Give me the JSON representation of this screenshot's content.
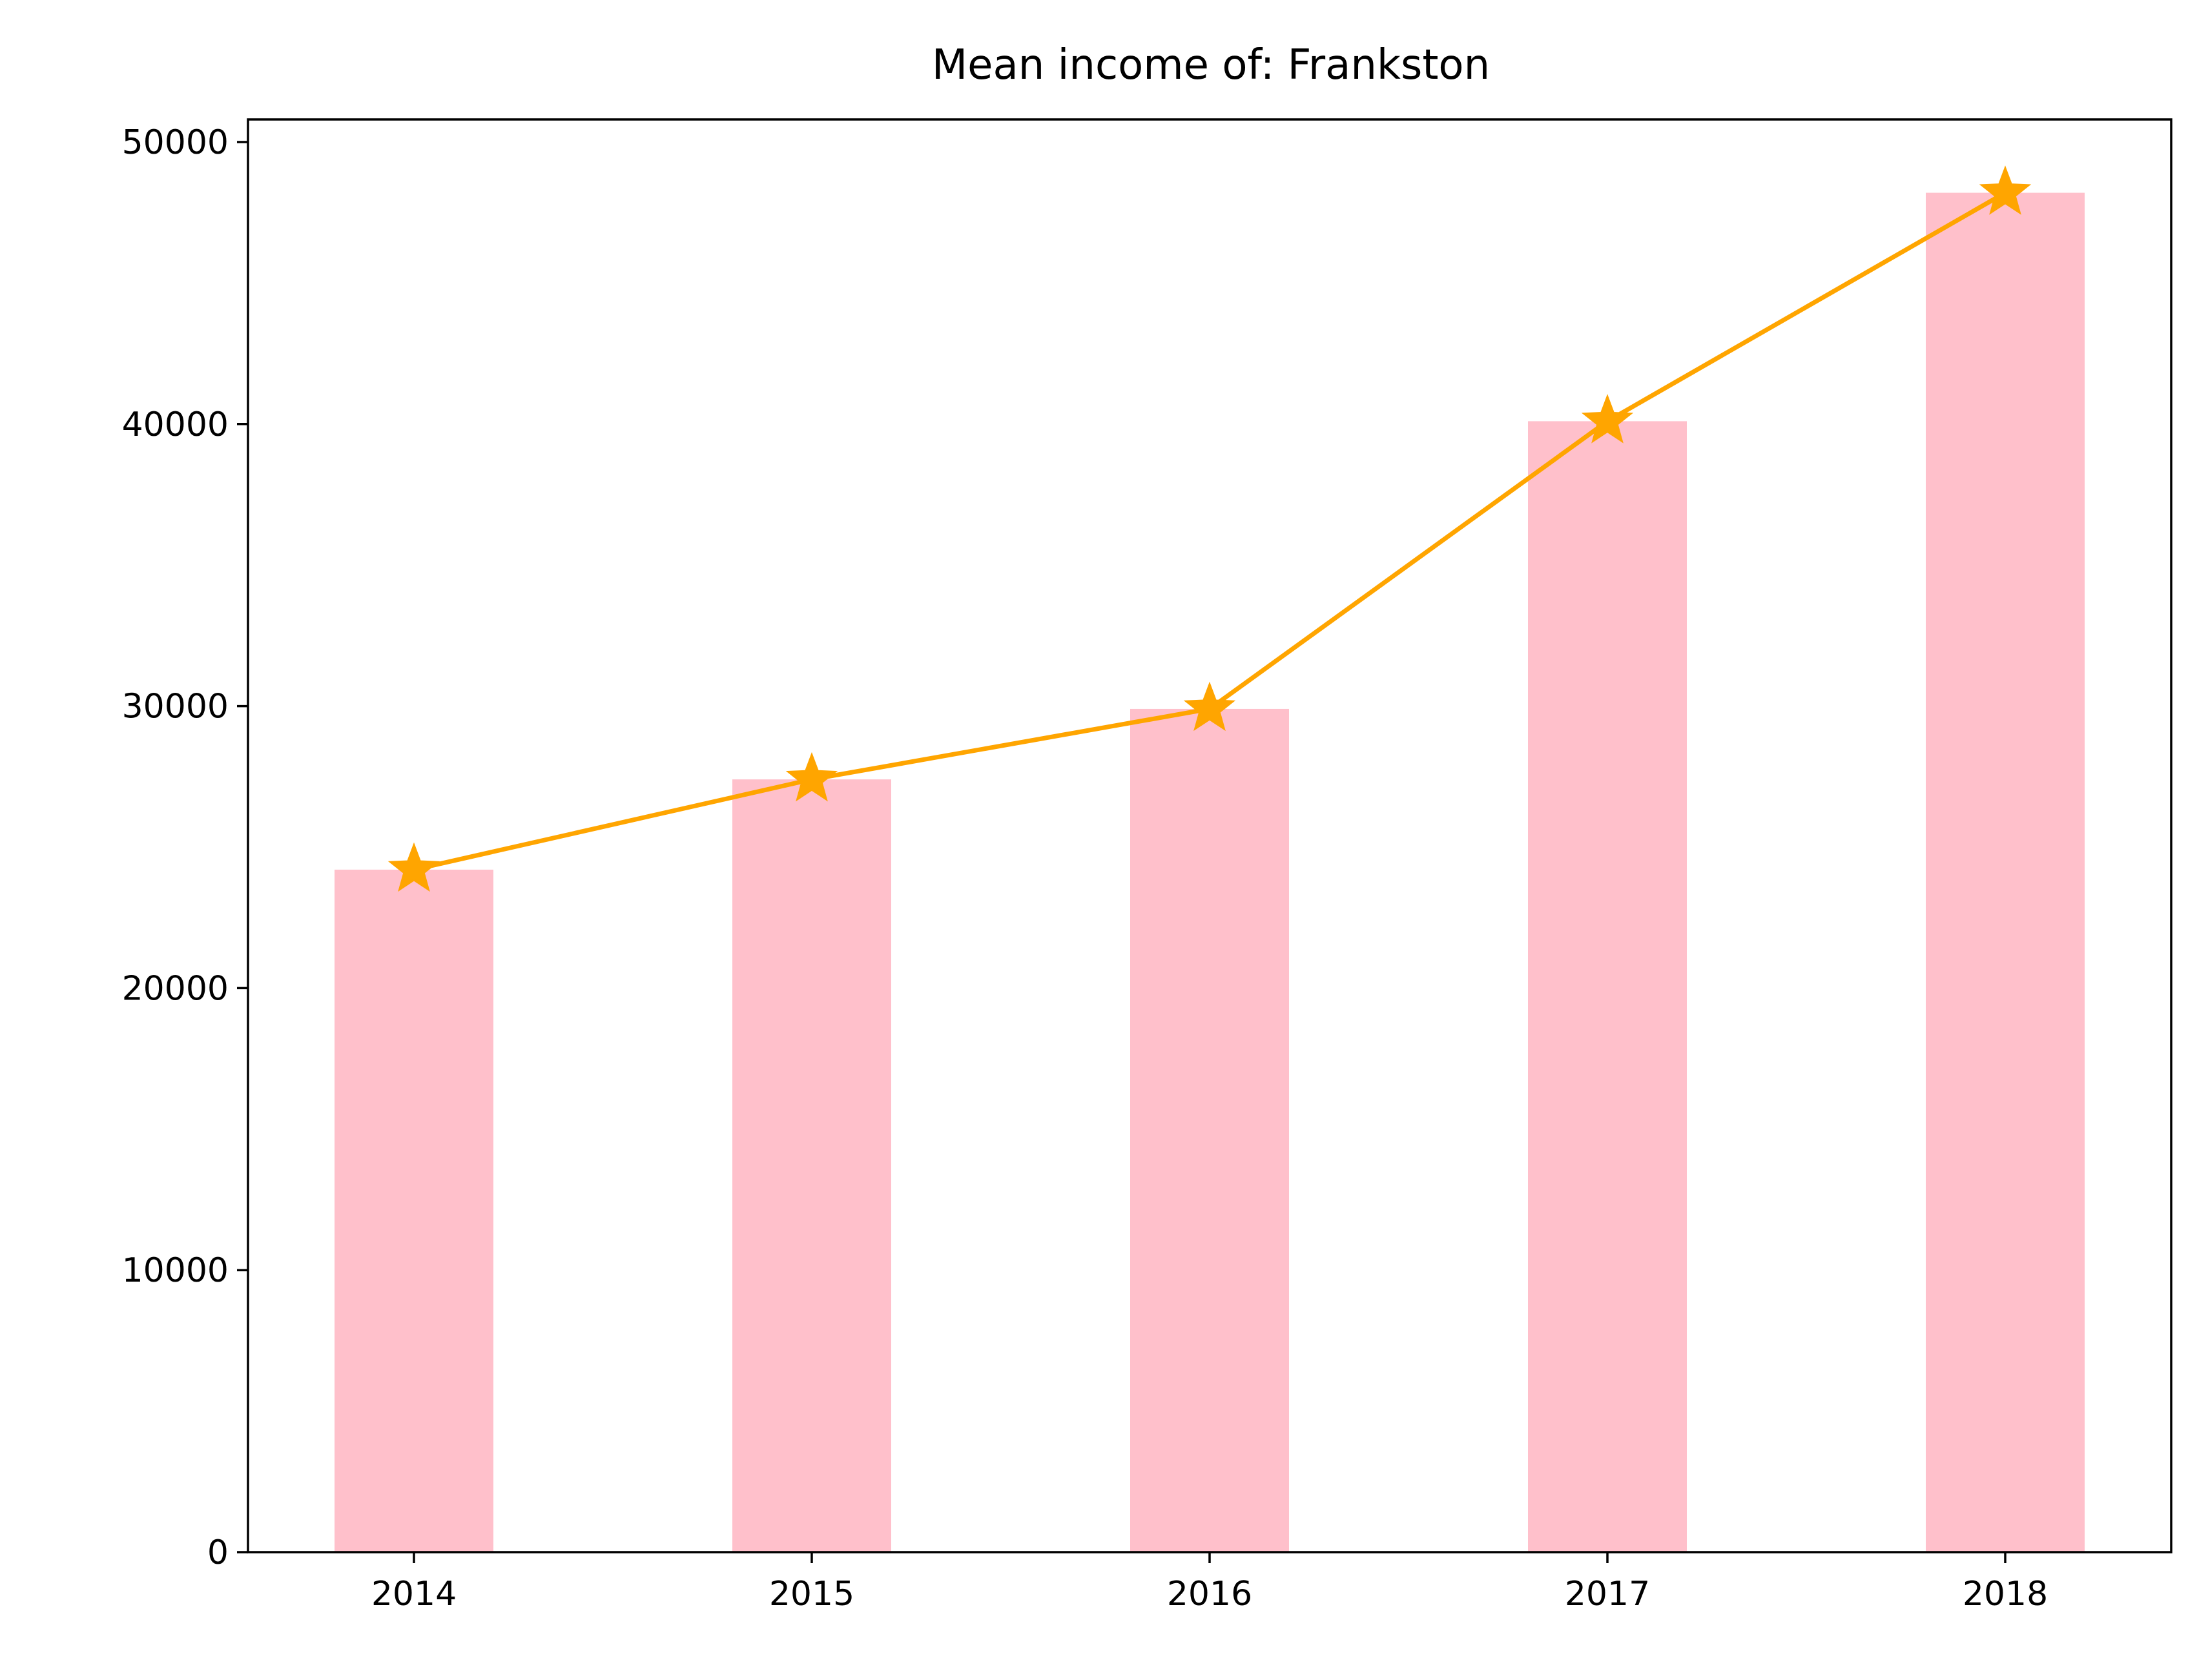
{
  "chart_data": {
    "type": "bar",
    "title": "Mean income of: Frankston",
    "xlabel": "",
    "ylabel": "",
    "categories": [
      "2014",
      "2015",
      "2016",
      "2017",
      "2018"
    ],
    "series": [
      {
        "kind": "bar",
        "values": [
          24200,
          27400,
          29900,
          40100,
          48200
        ],
        "color": "#FFC0CB"
      },
      {
        "kind": "line",
        "marker": "star",
        "values": [
          24200,
          27400,
          29900,
          40100,
          48200
        ],
        "color": "#FFA500"
      }
    ],
    "ylim": [
      0,
      50800
    ],
    "yticks": [
      0,
      10000,
      20000,
      30000,
      40000,
      50000
    ],
    "ytick_labels": [
      "0",
      "10000",
      "20000",
      "30000",
      "40000",
      "50000"
    ],
    "grid": false,
    "legend": "none"
  }
}
